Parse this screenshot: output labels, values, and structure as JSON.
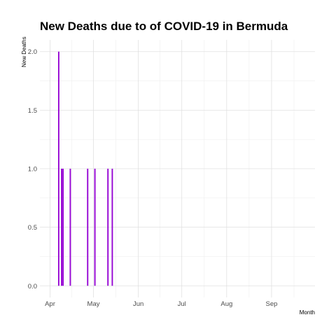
{
  "chart_data": {
    "type": "bar",
    "title": "New Deaths due to of COVID-19 in Bermuda",
    "xlabel": "Month",
    "ylabel": "New Deaths",
    "x_type": "date",
    "xlim": [
      "2020-03-25",
      "2020-10-01"
    ],
    "ylim": [
      -0.1,
      2.1
    ],
    "x_ticks": [
      {
        "date": "2020-04-01",
        "label": "Apr"
      },
      {
        "date": "2020-05-01",
        "label": "May"
      },
      {
        "date": "2020-06-01",
        "label": "Jun"
      },
      {
        "date": "2020-07-01",
        "label": "Jul"
      },
      {
        "date": "2020-08-01",
        "label": "Aug"
      },
      {
        "date": "2020-09-01",
        "label": "Sep"
      }
    ],
    "y_ticks": [
      {
        "value": 0.0,
        "label": "0.0"
      },
      {
        "value": 0.5,
        "label": "0.5"
      },
      {
        "value": 1.0,
        "label": "1.0"
      },
      {
        "value": 1.5,
        "label": "1.5"
      },
      {
        "value": 2.0,
        "label": "2.0"
      }
    ],
    "series": [
      {
        "color": "#9400d3",
        "points": [
          {
            "x": "2020-04-07",
            "y": 2
          },
          {
            "x": "2020-04-09",
            "y": 1
          },
          {
            "x": "2020-04-10",
            "y": 1
          },
          {
            "x": "2020-04-15",
            "y": 1
          },
          {
            "x": "2020-04-27",
            "y": 1
          },
          {
            "x": "2020-05-02",
            "y": 1
          },
          {
            "x": "2020-05-11",
            "y": 1
          },
          {
            "x": "2020-05-14",
            "y": 1
          }
        ]
      }
    ],
    "grid": true,
    "legend": "none"
  }
}
